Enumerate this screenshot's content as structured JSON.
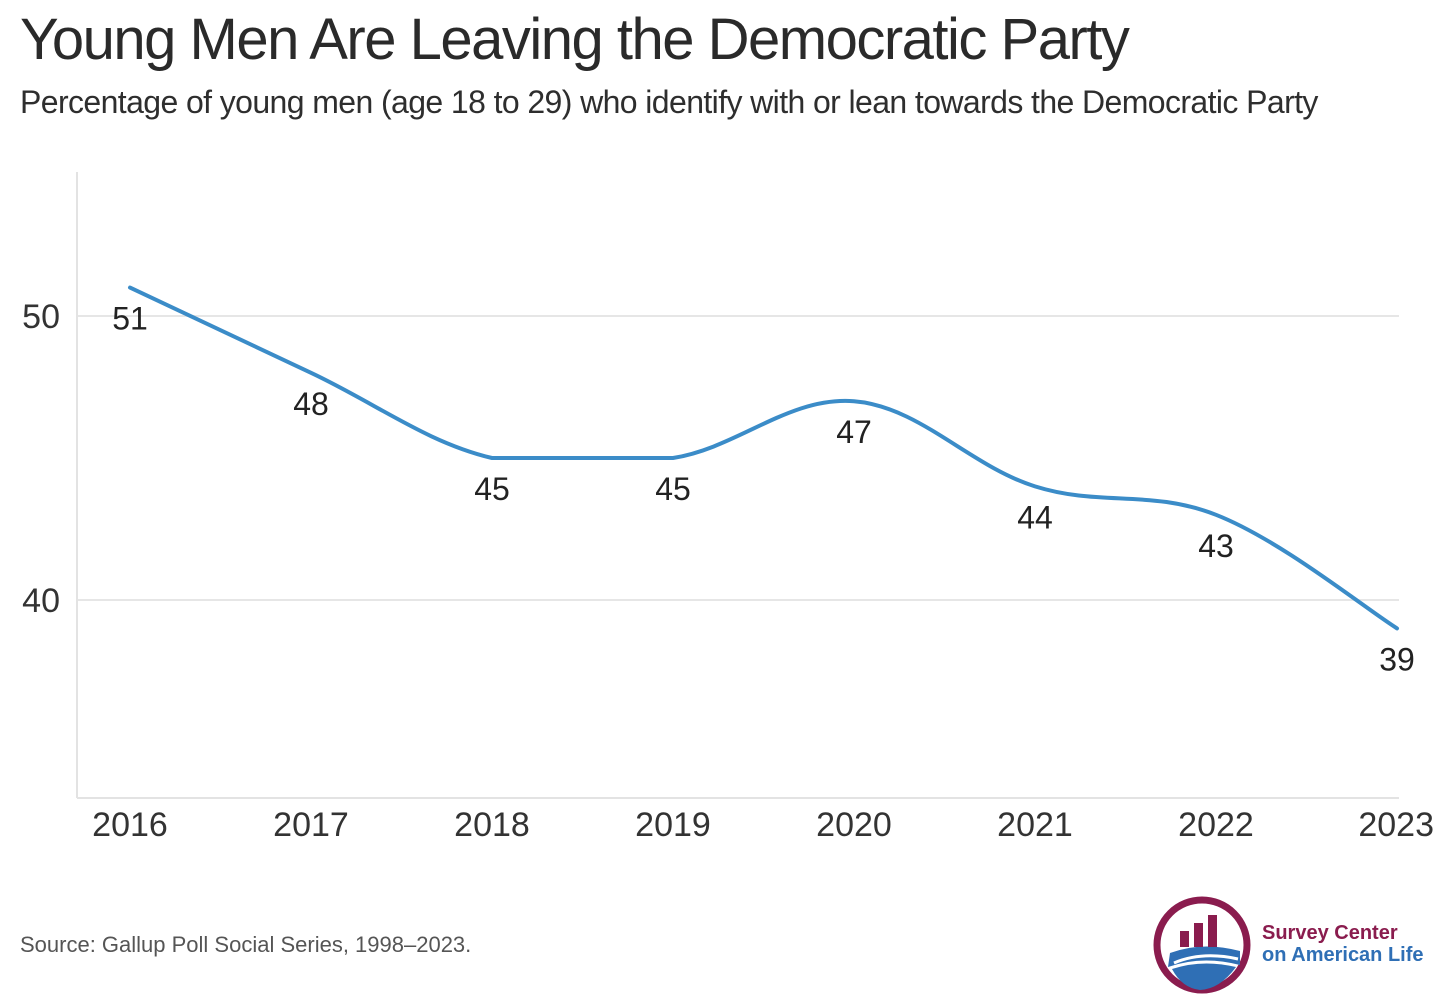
{
  "header": {
    "title": "Young Men Are Leaving the Democratic Party",
    "subtitle": "Percentage of young men (age 18 to 29) who identify with or lean towards the Democratic Party"
  },
  "footer": {
    "source": "Source: Gallup Poll Social Series, 1998–2023.",
    "logo_line1": "Survey Center",
    "logo_line2": "on American Life"
  },
  "chart_data": {
    "type": "line",
    "x": [
      "2016",
      "2017",
      "2018",
      "2019",
      "2020",
      "2021",
      "2022",
      "2023"
    ],
    "series": [
      {
        "values": [
          51,
          48,
          45,
          45,
          47,
          44,
          43,
          39
        ]
      }
    ],
    "yticks": [
      "40",
      "50"
    ],
    "ylim": [
      33,
      55
    ],
    "grid": true,
    "line_color": "#3b8cc8"
  },
  "colors": {
    "logo_maroon": "#8a1c4e",
    "logo_blue": "#2f6fb5"
  }
}
